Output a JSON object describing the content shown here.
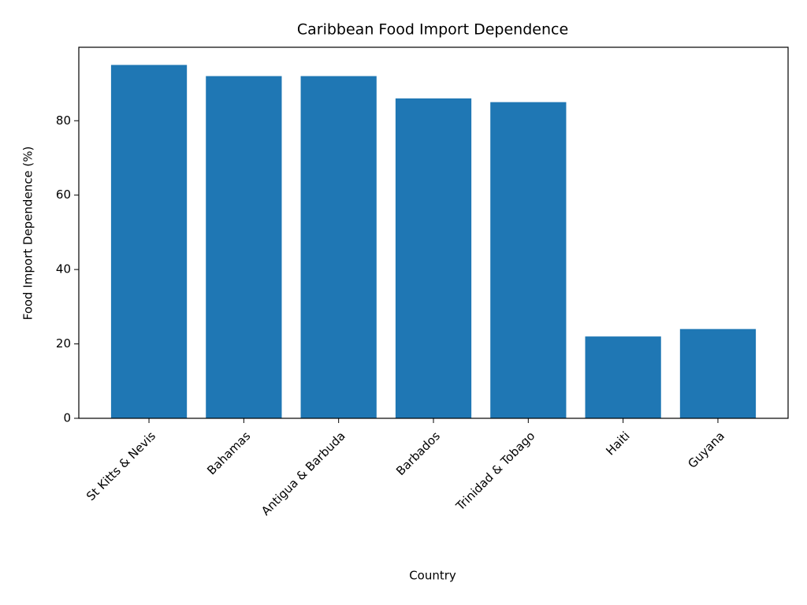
{
  "chart_data": {
    "type": "bar",
    "title": "Caribbean Food Import Dependence",
    "x_label": "Country",
    "y_label": "Food Import Dependence (%)",
    "categories": [
      "St Kitts & Nevis",
      "Bahamas",
      "Antigua & Barbuda",
      "Barbados",
      "Trinidad & Tobago",
      "Haiti",
      "Guyana"
    ],
    "values": [
      95,
      92,
      92,
      86,
      85,
      22,
      24
    ],
    "color": "#1f77b4",
    "ylim": [
      0,
      99.75
    ],
    "yticks": [
      0,
      20,
      40,
      60,
      80
    ],
    "grid": false
  }
}
